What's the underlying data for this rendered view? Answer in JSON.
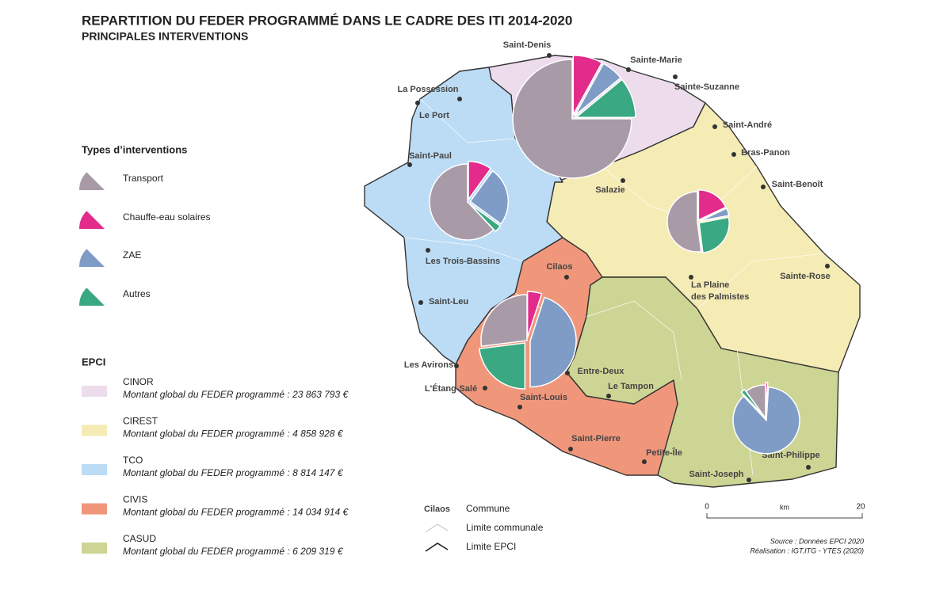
{
  "header": {
    "title": "REPARTITION DU FEDER PROGRAMMÉ DANS LE CADRE DES ITI 2014-2020",
    "subtitle": "PRINCIPALES INTERVENTIONS"
  },
  "legend_types": {
    "title": "Types d’interventions",
    "items": [
      {
        "label": "Transport",
        "color": "#a99aa8"
      },
      {
        "label": "Chauffe-eau solaires",
        "color": "#e22b8a"
      },
      {
        "label": "ZAE",
        "color": "#7f9cc6"
      },
      {
        "label": "Autres",
        "color": "#3aa882"
      }
    ]
  },
  "legend_epci": {
    "title": "EPCI",
    "items": [
      {
        "name": "CINOR",
        "amount": "Montant global du FEDER programmé : 23 863 793 €",
        "color": "#ecdcec",
        "shares": [
          75,
          8,
          6,
          11
        ]
      },
      {
        "name": "CIREST",
        "amount": "Montant global du FEDER programmé : 4 858 928 €",
        "color": "#f5ebb5",
        "shares": [
          52,
          18,
          4,
          26
        ]
      },
      {
        "name": "TCO",
        "amount": "Montant global du FEDER programmé : 8 814 147 €",
        "color": "#bcdcf5",
        "shares": [
          62,
          10,
          25,
          3
        ]
      },
      {
        "name": "CIVIS",
        "amount": "Montant global du FEDER programmé : 14 034 914 €",
        "color": "#f0977b",
        "shares": [
          27,
          5,
          45,
          23
        ]
      },
      {
        "name": "CASUD",
        "amount": "Montant global du FEDER programmé : 6 209 319 €",
        "color": "#cdd594",
        "shares": [
          10,
          1,
          87,
          2
        ]
      }
    ]
  },
  "communes": [
    "Saint-Denis",
    "Sainte-Marie",
    "Sainte-Suzanne",
    "La Possession",
    "Le Port",
    "Saint-André",
    "Bras-Panon",
    "Saint-Paul",
    "Salazie",
    "Saint-Benoît",
    "Les Trois-Bassins",
    "Cilaos",
    "Sainte-Rose",
    [
      "La Plaine",
      "des Palmistes"
    ],
    "Saint-Leu",
    "Les Avirons",
    "Entre-Deux",
    "L'Étang-Salé",
    "Le Tampon",
    "Saint-Louis",
    "Saint-Pierre",
    "Petite-Île",
    "Saint-Joseph",
    "Saint-Philippe"
  ],
  "map_legend": {
    "sample": "Cilaos",
    "commune": "Commune",
    "limite_communale": "Limite communale",
    "limite_epci": "Limite EPCI"
  },
  "scale": {
    "start": 0,
    "unit": "km",
    "end": 20
  },
  "source": [
    "Source : Données EPCI 2020",
    "Réalisation : IGT.ITG - YTES (2020)"
  ]
}
